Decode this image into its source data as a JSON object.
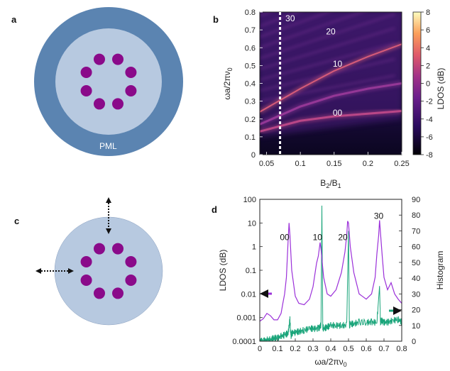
{
  "panels": {
    "a": {
      "label": "a",
      "pml_label": "PML"
    },
    "b": {
      "label": "b"
    },
    "c": {
      "label": "c"
    },
    "d": {
      "label": "d"
    }
  },
  "colors": {
    "pml": "#5b84b1",
    "inner": "#b7c9e0",
    "dot": "#8a0a8a",
    "purple_line": "#9b30d9",
    "green_line": "#1aa57a",
    "arrow": "#111111"
  },
  "chart_data": [
    {
      "id": "b",
      "type": "heatmap",
      "title": "",
      "xlabel": "B2/B1",
      "ylabel": "ωa/2πν0",
      "colorbar_label": "LDOS (dB)",
      "xlim": [
        0.04,
        0.25
      ],
      "ylim": [
        0,
        0.8
      ],
      "x_ticks": [
        "0.05",
        "0.1",
        "0.15",
        "0.2",
        "0.25"
      ],
      "y_ticks": [
        "0",
        "0.1",
        "0.2",
        "0.3",
        "0.4",
        "0.5",
        "0.6",
        "0.7",
        "0.8"
      ],
      "colorbar_range": [
        -8,
        8
      ],
      "colorbar_ticks": [
        "8",
        "6",
        "4",
        "2",
        "0",
        "-2",
        "-4",
        "-6",
        "-8"
      ],
      "marker_x": 0.07,
      "annotations": [
        {
          "text": "30",
          "x": 0.085,
          "y": 0.765
        },
        {
          "text": "20",
          "x": 0.145,
          "y": 0.69
        },
        {
          "text": "10",
          "x": 0.155,
          "y": 0.51
        },
        {
          "text": "00",
          "x": 0.155,
          "y": 0.235
        }
      ],
      "bands": [
        {
          "name": "00",
          "x": [
            0.04,
            0.1,
            0.15,
            0.2,
            0.25
          ],
          "y": [
            0.13,
            0.19,
            0.215,
            0.23,
            0.245
          ]
        },
        {
          "name": "10",
          "x": [
            0.04,
            0.1,
            0.15,
            0.2,
            0.25
          ],
          "y": [
            0.24,
            0.37,
            0.47,
            0.55,
            0.62
          ]
        },
        {
          "name": "10-low",
          "x": [
            0.04,
            0.1,
            0.15,
            0.2,
            0.25
          ],
          "y": [
            0.17,
            0.27,
            0.33,
            0.37,
            0.4
          ]
        }
      ]
    },
    {
      "id": "d",
      "type": "line",
      "xlabel": "ωa/2πν0",
      "ylabel": "LDOS (dB)",
      "y2label": "Histogram",
      "xlim": [
        0,
        0.8
      ],
      "ylim_log": [
        0.0001,
        100
      ],
      "y2lim": [
        0,
        90
      ],
      "x_ticks": [
        "0",
        "0.1",
        "0.2",
        "0.3",
        "0.4",
        "0.5",
        "0.6",
        "0.7",
        "0.8"
      ],
      "y_ticks": [
        "100",
        "10",
        "1",
        "0.1",
        "0.01",
        "0.001",
        "0.0001"
      ],
      "y2_ticks": [
        "90",
        "80",
        "70",
        "60",
        "50",
        "40",
        "30",
        "20",
        "10",
        "0"
      ],
      "annotations": [
        {
          "text": "00",
          "x": 0.14,
          "y": 2.5
        },
        {
          "text": "10",
          "x": 0.325,
          "y": 2.5
        },
        {
          "text": "20",
          "x": 0.468,
          "y": 2.5
        },
        {
          "text": "30",
          "x": 0.67,
          "y": 20
        }
      ],
      "series": [
        {
          "name": "LDOS",
          "axis": "left",
          "x": [
            0.0,
            0.02,
            0.04,
            0.06,
            0.08,
            0.1,
            0.12,
            0.13,
            0.14,
            0.15,
            0.16,
            0.165,
            0.17,
            0.18,
            0.2,
            0.22,
            0.25,
            0.28,
            0.3,
            0.32,
            0.33,
            0.34,
            0.345,
            0.35,
            0.36,
            0.38,
            0.4,
            0.43,
            0.46,
            0.48,
            0.49,
            0.495,
            0.5,
            0.51,
            0.53,
            0.56,
            0.6,
            0.63,
            0.65,
            0.66,
            0.67,
            0.675,
            0.68,
            0.69,
            0.7,
            0.72,
            0.74,
            0.76,
            0.78,
            0.8
          ],
          "y": [
            0.0007,
            0.0009,
            0.0015,
            0.0012,
            0.0008,
            0.0008,
            0.0015,
            0.004,
            0.01,
            0.05,
            2.0,
            10.0,
            3.0,
            0.1,
            0.008,
            0.004,
            0.0035,
            0.006,
            0.02,
            0.2,
            0.4,
            1.5,
            0.8,
            0.3,
            0.05,
            0.01,
            0.008,
            0.015,
            0.08,
            0.6,
            3.0,
            12.0,
            10.0,
            1.0,
            0.08,
            0.01,
            0.006,
            0.01,
            0.05,
            0.5,
            3.0,
            13.0,
            4.0,
            0.4,
            0.05,
            0.015,
            0.03,
            0.01,
            0.006,
            0.004
          ]
        },
        {
          "name": "Histogram",
          "axis": "right",
          "x": [
            0.0,
            0.02,
            0.04,
            0.06,
            0.08,
            0.1,
            0.12,
            0.14,
            0.16,
            0.17,
            0.175,
            0.18,
            0.2,
            0.22,
            0.25,
            0.28,
            0.3,
            0.33,
            0.345,
            0.35,
            0.355,
            0.36,
            0.38,
            0.4,
            0.43,
            0.46,
            0.49,
            0.5,
            0.505,
            0.51,
            0.53,
            0.56,
            0.6,
            0.63,
            0.66,
            0.675,
            0.68,
            0.685,
            0.7,
            0.72,
            0.75,
            0.78,
            0.8
          ],
          "y": [
            0,
            0,
            1,
            1,
            2,
            2,
            3,
            4,
            5,
            14,
            3,
            5,
            6,
            6,
            7,
            8,
            8,
            8,
            10,
            86,
            9,
            8,
            9,
            10,
            10,
            10,
            10,
            70,
            10,
            11,
            11,
            12,
            12,
            12,
            12,
            35,
            12,
            13,
            12,
            12,
            13,
            14,
            12
          ]
        }
      ]
    }
  ]
}
